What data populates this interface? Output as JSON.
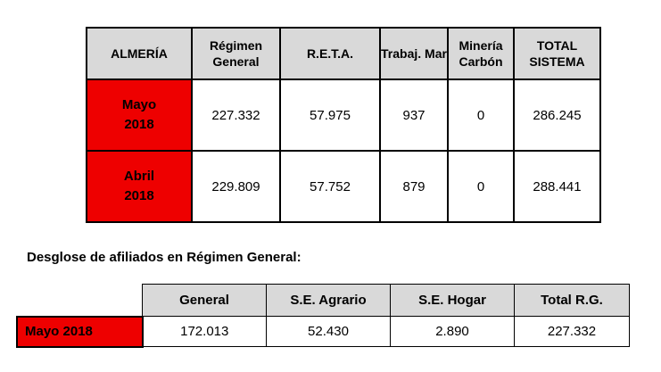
{
  "main_table": {
    "headers": [
      "ALMERÍA",
      "Régimen General",
      "R.E.T.A.",
      "Trabaj. Mar",
      "Minería Carbón",
      "TOTAL SISTEMA"
    ],
    "rows": [
      {
        "month_line1": "Mayo",
        "month_line2": "2018",
        "values": [
          "227.332",
          "57.975",
          "937",
          "0",
          "286.245"
        ]
      },
      {
        "month_line1": "Abril",
        "month_line2": "2018",
        "values": [
          "229.809",
          "57.752",
          "879",
          "0",
          "288.441"
        ]
      }
    ]
  },
  "breakdown": {
    "title": "Desglose de afiliados en Régimen General:",
    "headers": [
      "General",
      "S.E. Agrario",
      "S.E. Hogar",
      "Total R.G."
    ],
    "row": {
      "label": "Mayo 2018",
      "values": [
        "172.013",
        "52.430",
        "2.890",
        "227.332"
      ]
    }
  },
  "colors": {
    "header_bg": "#d9d9d9",
    "month_bg": "#ee0000",
    "border": "#000000"
  }
}
